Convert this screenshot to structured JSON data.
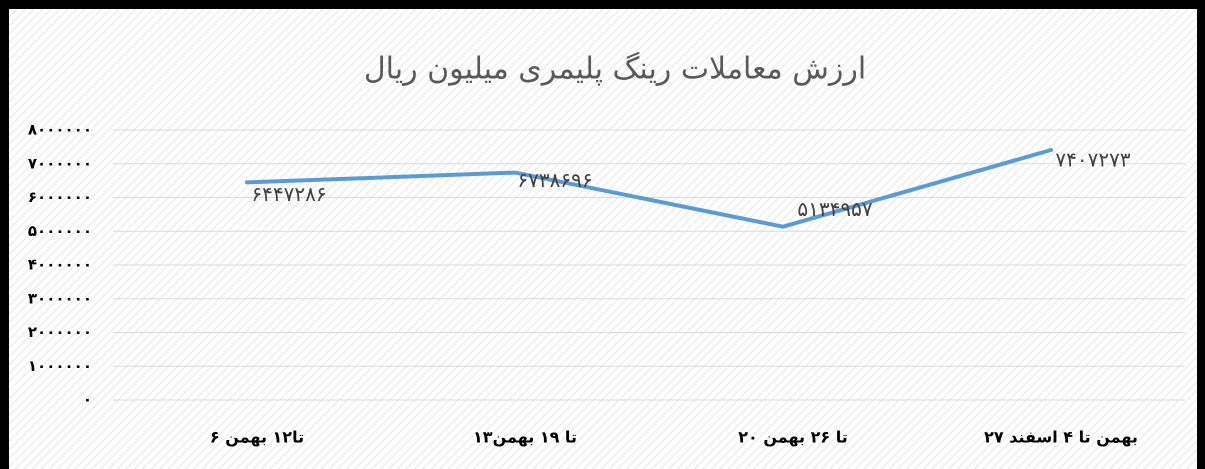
{
  "chart_data": {
    "type": "line",
    "title": "ارزش معاملات رینگ پلیمری میلیون ریال",
    "categories": [
      "۶ تا۱۲ بهمن",
      "۱۳تا ۱۹ بهمن",
      "۲۰ تا ۲۶ بهمن",
      "۲۷ بهمن تا ۴ اسفند"
    ],
    "series": [
      {
        "name": "ارزش معاملات",
        "color": "#5b9bd5",
        "values": [
          6447286,
          6738696,
          5134957,
          7407273
        ],
        "value_labels": [
          "۶۴۴۷۲۸۶",
          "۶۷۳۸۶۹۶",
          "۵۱۳۴۹۵۷",
          "۷۴۰۷۲۷۳"
        ]
      }
    ],
    "ylim": [
      0,
      8000000
    ],
    "yticks": [
      {
        "value": 0,
        "label": "۰"
      },
      {
        "value": 1000000,
        "label": "۱۰۰۰۰۰۰"
      },
      {
        "value": 2000000,
        "label": "۲۰۰۰۰۰۰"
      },
      {
        "value": 3000000,
        "label": "۳۰۰۰۰۰۰"
      },
      {
        "value": 4000000,
        "label": "۴۰۰۰۰۰۰"
      },
      {
        "value": 5000000,
        "label": "۵۰۰۰۰۰۰"
      },
      {
        "value": 6000000,
        "label": "۶۰۰۰۰۰۰"
      },
      {
        "value": 7000000,
        "label": "۷۰۰۰۰۰۰"
      },
      {
        "value": 8000000,
        "label": "۸۰۰۰۰۰۰"
      }
    ],
    "grid": true
  }
}
